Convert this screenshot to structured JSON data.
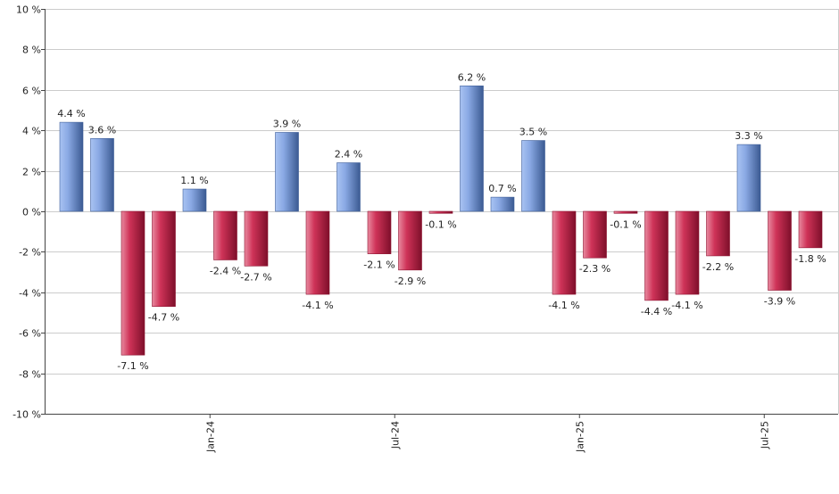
{
  "chart_data": {
    "type": "bar",
    "title": "",
    "xlabel": "",
    "ylabel": "",
    "ylim": [
      -10,
      10
    ],
    "y_ticks": [
      10,
      8,
      6,
      4,
      2,
      0,
      -2,
      -4,
      -6,
      -8,
      -10
    ],
    "y_tick_suffix": " %",
    "grid": true,
    "x_tick_labels": [
      "Jan-24",
      "Jul-24",
      "Jan-25",
      "Jul-25"
    ],
    "x_tick_label_positions": [
      4.5,
      10.5,
      16.5,
      22.5
    ],
    "values": [
      4.4,
      3.6,
      -7.1,
      -4.7,
      1.1,
      -2.4,
      -2.7,
      3.9,
      -4.1,
      2.4,
      -2.1,
      -2.9,
      -0.1,
      6.2,
      0.7,
      3.5,
      -4.1,
      -2.3,
      -0.1,
      -4.4,
      -4.1,
      -2.2,
      3.3,
      -3.9,
      -1.8
    ],
    "value_label_suffix": " %",
    "colors": {
      "positive": "#7b9ee0",
      "positive_dark": "#3f5f9a",
      "negative": "#c8234a",
      "negative_dark": "#8e1230",
      "grid": "#cccccc",
      "axis": "#444444"
    }
  }
}
